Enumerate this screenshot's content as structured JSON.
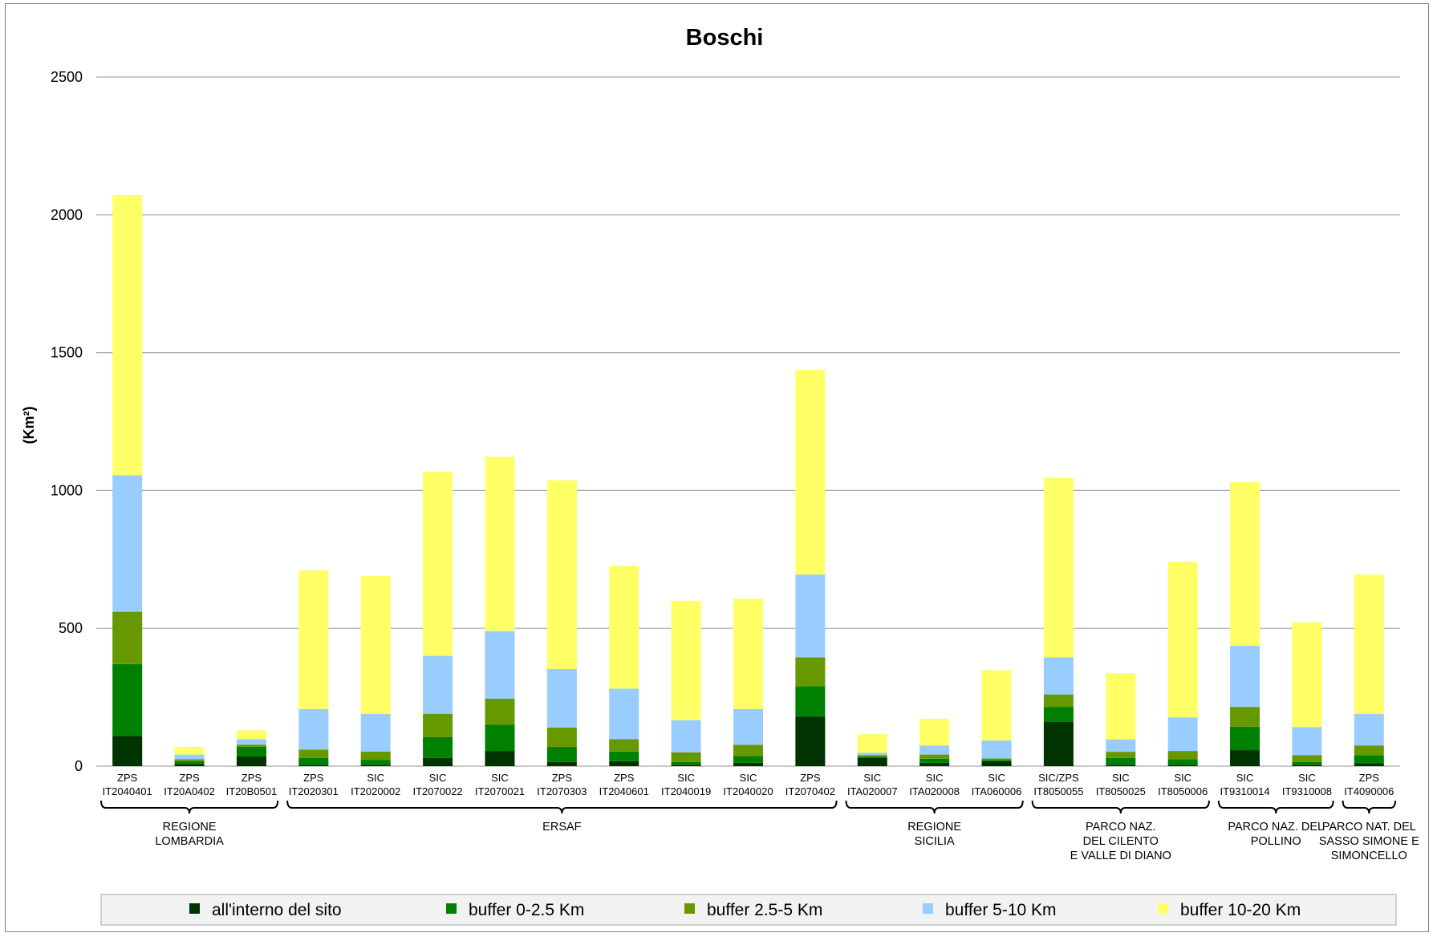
{
  "chart_data": {
    "type": "bar",
    "stacked": true,
    "title": "Boschi",
    "ylabel": "(Km²)",
    "ylim": [
      0,
      2500
    ],
    "yticks": [
      0,
      500,
      1000,
      1500,
      2000,
      2500
    ],
    "grid": true,
    "legend_position": "bottom",
    "categories": [
      [
        "ZPS",
        "IT2040401"
      ],
      [
        "ZPS",
        "IT20A0402"
      ],
      [
        "ZPS",
        "IT20B0501"
      ],
      [
        "ZPS",
        "IT2020301"
      ],
      [
        "SIC",
        "IT2020002"
      ],
      [
        "SIC",
        "IT2070022"
      ],
      [
        "SIC",
        "IT2070021"
      ],
      [
        "ZPS",
        "IT2070303"
      ],
      [
        "ZPS",
        "IT2040601"
      ],
      [
        "SIC",
        "IT2040019"
      ],
      [
        "SIC",
        "IT2040020"
      ],
      [
        "ZPS",
        "IT2070402"
      ],
      [
        "SIC",
        "ITA020007"
      ],
      [
        "SIC",
        "ITA020008"
      ],
      [
        "SIC",
        "ITA060006"
      ],
      [
        "SIC/ZPS",
        "IT8050055"
      ],
      [
        "SIC",
        "IT8050025"
      ],
      [
        "SIC",
        "IT8050006"
      ],
      [
        "SIC",
        "IT9310014"
      ],
      [
        "SIC",
        "IT9310008"
      ],
      [
        "ZPS",
        "IT4090006"
      ]
    ],
    "groups": [
      {
        "label": [
          "REGIONE",
          "LOMBARDIA"
        ],
        "start": 0,
        "end": 2
      },
      {
        "label": [
          "ERSAF"
        ],
        "start": 3,
        "end": 11
      },
      {
        "label": [
          "REGIONE",
          "SICILIA"
        ],
        "start": 12,
        "end": 14
      },
      {
        "label": [
          "PARCO NAZ.",
          "DEL CILENTO",
          "E VALLE DI DIANO"
        ],
        "start": 15,
        "end": 17
      },
      {
        "label": [
          "PARCO NAZ. DEL",
          "POLLINO"
        ],
        "start": 18,
        "end": 19
      },
      {
        "label": [
          "PARCO NAT. DEL",
          "SASSO SIMONE E",
          "SIMONCELLO"
        ],
        "start": 20,
        "end": 20
      }
    ],
    "series": [
      {
        "name": "all'interno del sito",
        "color": "#003300",
        "values": [
          110,
          8,
          35,
          5,
          5,
          30,
          55,
          15,
          18,
          5,
          12,
          180,
          30,
          12,
          18,
          160,
          5,
          5,
          58,
          5,
          10
        ]
      },
      {
        "name": "buffer 0-2.5 Km",
        "color": "#008000",
        "values": [
          260,
          10,
          35,
          25,
          18,
          75,
          95,
          55,
          35,
          10,
          25,
          110,
          5,
          15,
          5,
          55,
          25,
          20,
          85,
          10,
          30
        ]
      },
      {
        "name": "buffer 2.5-5 Km",
        "color": "#669900",
        "values": [
          190,
          7,
          8,
          30,
          30,
          85,
          95,
          70,
          45,
          35,
          40,
          105,
          5,
          15,
          5,
          45,
          22,
          30,
          72,
          25,
          35
        ]
      },
      {
        "name": "buffer 5-10 Km",
        "color": "#99ccff",
        "values": [
          495,
          17,
          20,
          147,
          137,
          210,
          245,
          212,
          183,
          117,
          130,
          300,
          8,
          33,
          65,
          135,
          45,
          122,
          222,
          102,
          115
        ]
      },
      {
        "name": "buffer 10-20 Km",
        "color": "#ffff66",
        "values": [
          1017,
          28,
          32,
          503,
          500,
          668,
          632,
          685,
          445,
          433,
          400,
          743,
          68,
          97,
          255,
          650,
          240,
          565,
          593,
          380,
          505
        ]
      }
    ]
  }
}
